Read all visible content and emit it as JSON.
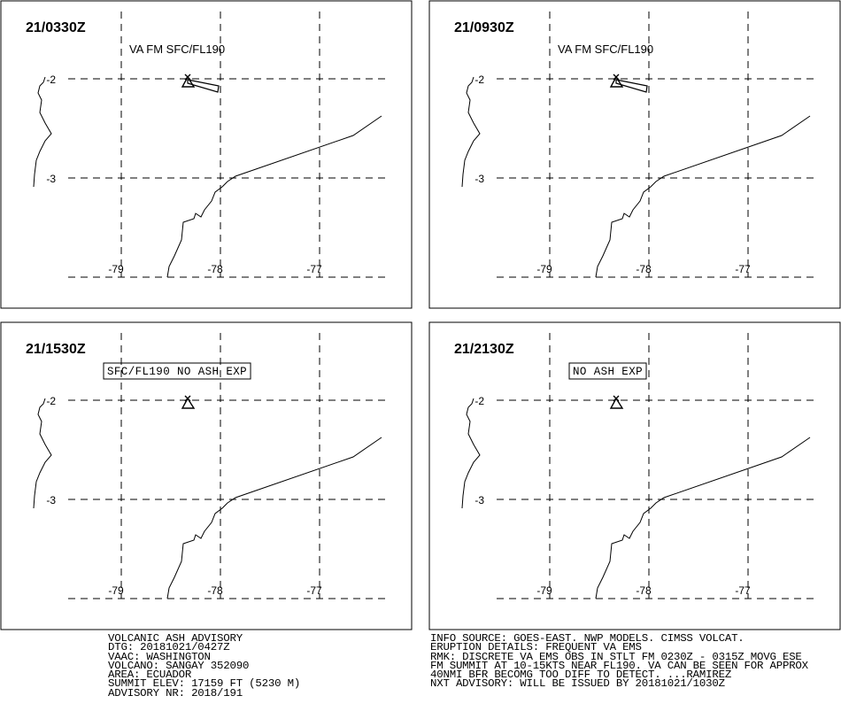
{
  "panels": [
    {
      "time": "21/0330Z",
      "label": "VA FM SFC/FL190",
      "label_boxed": false,
      "show_plume": true,
      "lat_labels": [
        "-2",
        "-3"
      ],
      "lon_labels": [
        "-79",
        "-78",
        "-77"
      ]
    },
    {
      "time": "21/0930Z",
      "label": "VA FM SFC/FL190",
      "label_boxed": false,
      "show_plume": true,
      "lat_labels": [
        "-2",
        "-3"
      ],
      "lon_labels": [
        "-79",
        "-78",
        "-77"
      ]
    },
    {
      "time": "21/1530Z",
      "label": "SFC/FL190 NO ASH EXP",
      "label_boxed": true,
      "show_plume": false,
      "lat_labels": [
        "-2",
        "-3"
      ],
      "lon_labels": [
        "-79",
        "-78",
        "-77"
      ]
    },
    {
      "time": "21/2130Z",
      "label": "NO ASH EXP",
      "label_boxed": true,
      "show_plume": false,
      "lat_labels": [
        "-2",
        "-3"
      ],
      "lon_labels": [
        "-79",
        "-78",
        "-77"
      ]
    }
  ],
  "advisory_left": [
    "VOLCANIC ASH ADVISORY",
    "DTG: 20181021/0427Z",
    "VAAC: WASHINGTON",
    "VOLCANO: SANGAY 352090",
    "AREA: ECUADOR",
    "SUMMIT ELEV: 17159 FT (5230 M)",
    "ADVISORY NR: 2018/191"
  ],
  "advisory_right": [
    "INFO SOURCE: GOES-EAST. NWP MODELS. CIMSS VOLCAT.",
    "ERUPTION DETAILS: FREQUENT VA EMS",
    "RMK: DISCRETE VA EMS OBS IN STLT FM 0230Z - 0315Z MOVG ESE",
    "FM SUMMIT AT 10-15KTS NEAR FL190. VA CAN BE SEEN FOR APPROX",
    "40NMI BFR BECOMG TOO DIFF TO DETECT. ...RAMIREZ",
    "NXT ADVISORY: WILL BE ISSUED BY 20181021/1030Z"
  ],
  "colors": {
    "line": "#000000",
    "background": "#ffffff"
  }
}
